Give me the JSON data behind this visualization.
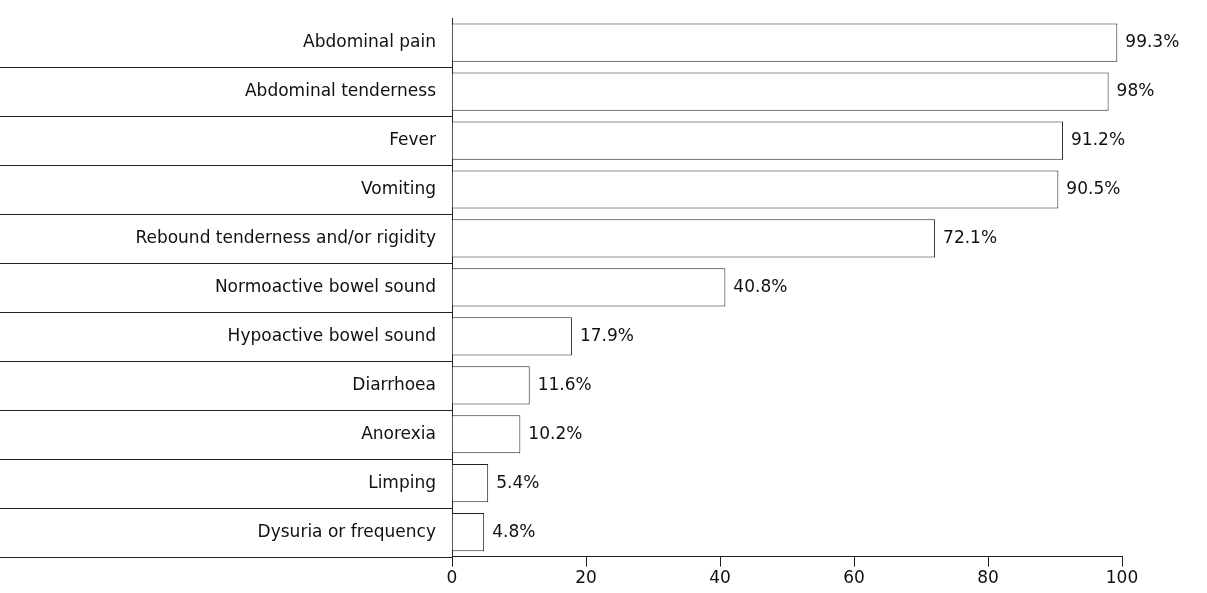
{
  "chart_data": {
    "type": "bar",
    "orientation": "horizontal",
    "categories": [
      "Abdominal pain",
      "Abdominal tenderness",
      "Fever",
      "Vomiting",
      "Rebound tenderness and/or rigidity",
      "Normoactive bowel sound",
      "Hypoactive bowel sound",
      "Diarrhoea",
      "Anorexia",
      "Limping",
      "Dysuria or frequency"
    ],
    "values": [
      99.3,
      98,
      91.2,
      90.5,
      72.1,
      40.8,
      17.9,
      11.6,
      10.2,
      5.4,
      4.8
    ],
    "value_labels": [
      "99.3%",
      "98%",
      "91.2%",
      "90.5%",
      "72.1%",
      "40.8%",
      "17.9%",
      "11.6%",
      "10.2%",
      "5.4%",
      "4.8%"
    ],
    "color": "#ffffff",
    "xlim": [
      0,
      100
    ],
    "xticks": [
      0,
      20,
      40,
      60,
      80,
      100
    ],
    "grid": false,
    "legend": false
  }
}
